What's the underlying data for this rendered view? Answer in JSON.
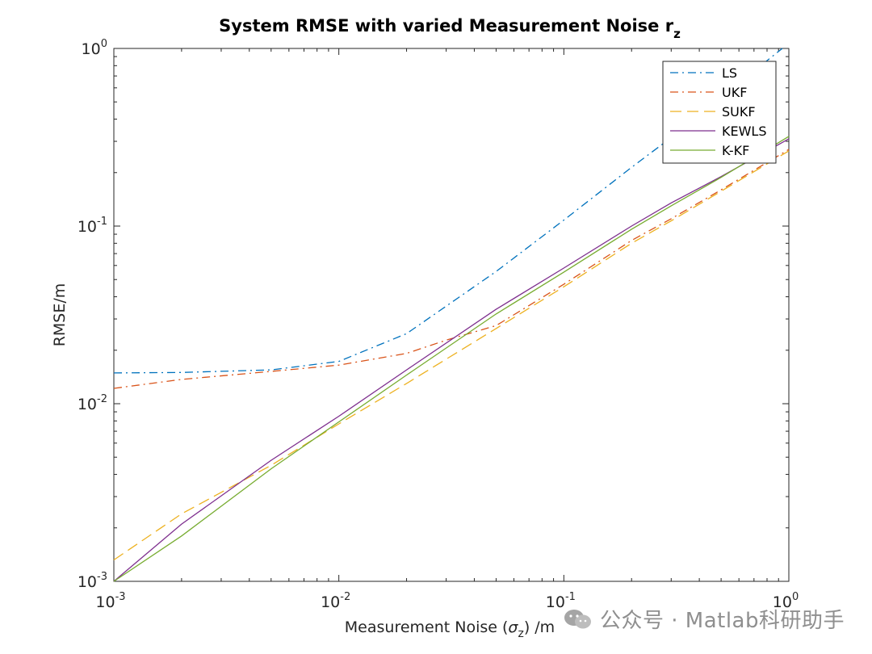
{
  "chart_data": {
    "type": "line",
    "title": {
      "main": "System RMSE with varied Measurement Noise r",
      "sub": "z"
    },
    "xlabel": {
      "pre": "Measurement Noise (",
      "sym": "σ",
      "sub": "z",
      "post": ") /m"
    },
    "ylabel": "RMSE/m",
    "xscale": "log",
    "yscale": "log",
    "xlim": [
      0.001,
      1
    ],
    "ylim": [
      0.001,
      1
    ],
    "xticks": [
      {
        "base": "10",
        "exp": "-3",
        "value": 0.001
      },
      {
        "base": "10",
        "exp": "-2",
        "value": 0.01
      },
      {
        "base": "10",
        "exp": "-1",
        "value": 0.1
      },
      {
        "base": "10",
        "exp": "0",
        "value": 1
      }
    ],
    "yticks": [
      {
        "base": "10",
        "exp": "-3",
        "value": 0.001
      },
      {
        "base": "10",
        "exp": "-2",
        "value": 0.01
      },
      {
        "base": "10",
        "exp": "-1",
        "value": 0.1
      },
      {
        "base": "10",
        "exp": "0",
        "value": 1
      }
    ],
    "grid": false,
    "legend_position": "top-right",
    "series": [
      {
        "name": "LS",
        "color": "#0072BD",
        "style": "dashdot",
        "x": [
          0.001,
          0.002,
          0.005,
          0.01,
          0.02,
          0.05,
          0.1,
          0.2,
          0.3,
          0.5,
          1
        ],
        "y": [
          0.0149,
          0.015,
          0.0155,
          0.0173,
          0.0248,
          0.0555,
          0.108,
          0.214,
          0.315,
          0.53,
          1.07
        ]
      },
      {
        "name": "UKF",
        "color": "#D95319",
        "style": "dashdot",
        "x": [
          0.001,
          0.002,
          0.005,
          0.01,
          0.02,
          0.03,
          0.05,
          0.1,
          0.2,
          0.3,
          0.5,
          1
        ],
        "y": [
          0.0122,
          0.0137,
          0.0152,
          0.0165,
          0.0192,
          0.0228,
          0.0275,
          0.047,
          0.083,
          0.11,
          0.16,
          0.27
        ]
      },
      {
        "name": "SUKF",
        "color": "#EDB120",
        "style": "dashed",
        "x": [
          0.001,
          0.002,
          0.005,
          0.01,
          0.02,
          0.05,
          0.1,
          0.2,
          0.3,
          0.5,
          1
        ],
        "y": [
          0.00132,
          0.0024,
          0.0045,
          0.0077,
          0.013,
          0.0265,
          0.0455,
          0.08,
          0.107,
          0.157,
          0.265
        ]
      },
      {
        "name": "KEWLS",
        "color": "#7E2F8E",
        "style": "solid",
        "x": [
          0.001,
          0.002,
          0.005,
          0.01,
          0.02,
          0.05,
          0.1,
          0.2,
          0.3,
          0.5,
          1
        ],
        "y": [
          0.001,
          0.0021,
          0.0048,
          0.0085,
          0.0155,
          0.034,
          0.058,
          0.1,
          0.135,
          0.19,
          0.31
        ]
      },
      {
        "name": "K-KF",
        "color": "#77AC30",
        "style": "solid",
        "x": [
          0.001,
          0.002,
          0.005,
          0.01,
          0.02,
          0.05,
          0.1,
          0.2,
          0.3,
          0.5,
          1
        ],
        "y": [
          0.001,
          0.0018,
          0.0043,
          0.0079,
          0.0145,
          0.032,
          0.055,
          0.096,
          0.13,
          0.188,
          0.32
        ]
      }
    ]
  },
  "watermark": {
    "text": "公众号 · Matlab科研助手",
    "icon": "wechat-icon"
  }
}
